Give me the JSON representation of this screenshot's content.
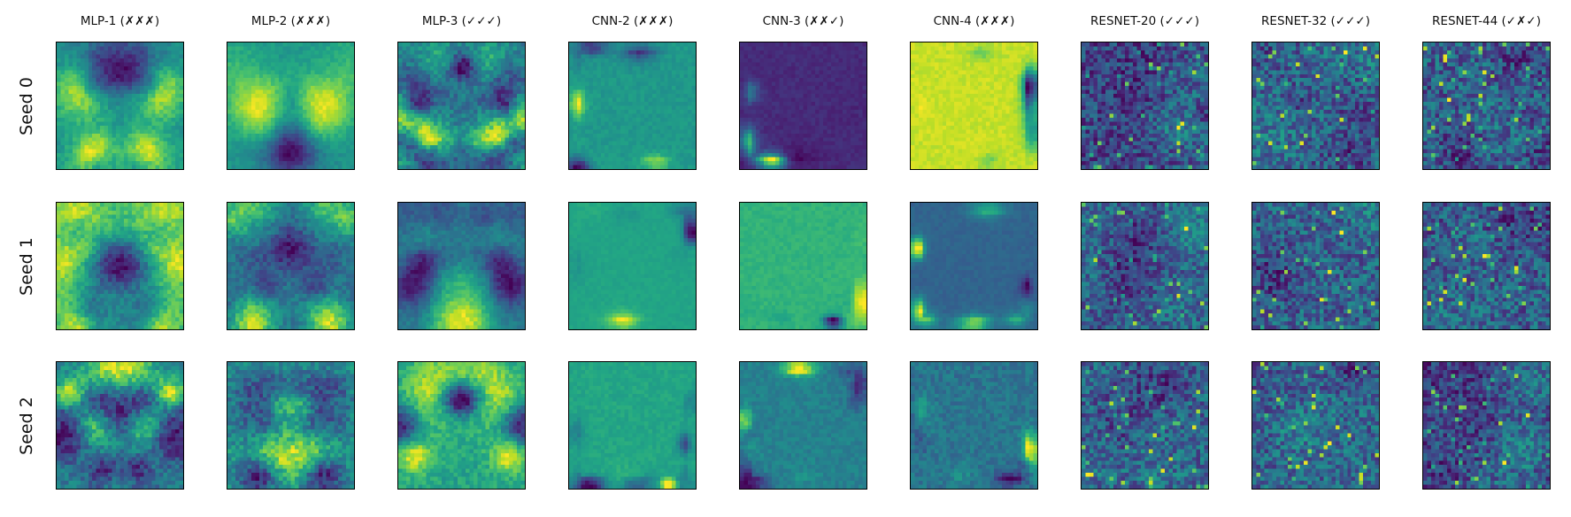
{
  "chart_data": {
    "type": "heatmap",
    "title": "",
    "colormap": "viridis",
    "grid_size": [
      32,
      32
    ],
    "columns": [
      "MLP-1 (✗✗✗)",
      "MLP-2 (✗✗✗)",
      "MLP-3 (✓✓✓)",
      "CNN-2 (✗✗✗)",
      "CNN-3 (✗✗✓)",
      "CNN-4 (✗✗✗)",
      "RESNET-20 (✓✓✓)",
      "RESNET-32 (✓✓✓)",
      "RESNET-44 (✓✗✓)"
    ],
    "rows": [
      "Seed 0",
      "Seed 1",
      "Seed 2"
    ],
    "xticks": "none",
    "yticks": "none",
    "grid": false
  },
  "colors": {
    "viridis_low": "#440154",
    "viridis_mid": "#21918c",
    "viridis_high": "#fde725",
    "frame": "#000000"
  }
}
